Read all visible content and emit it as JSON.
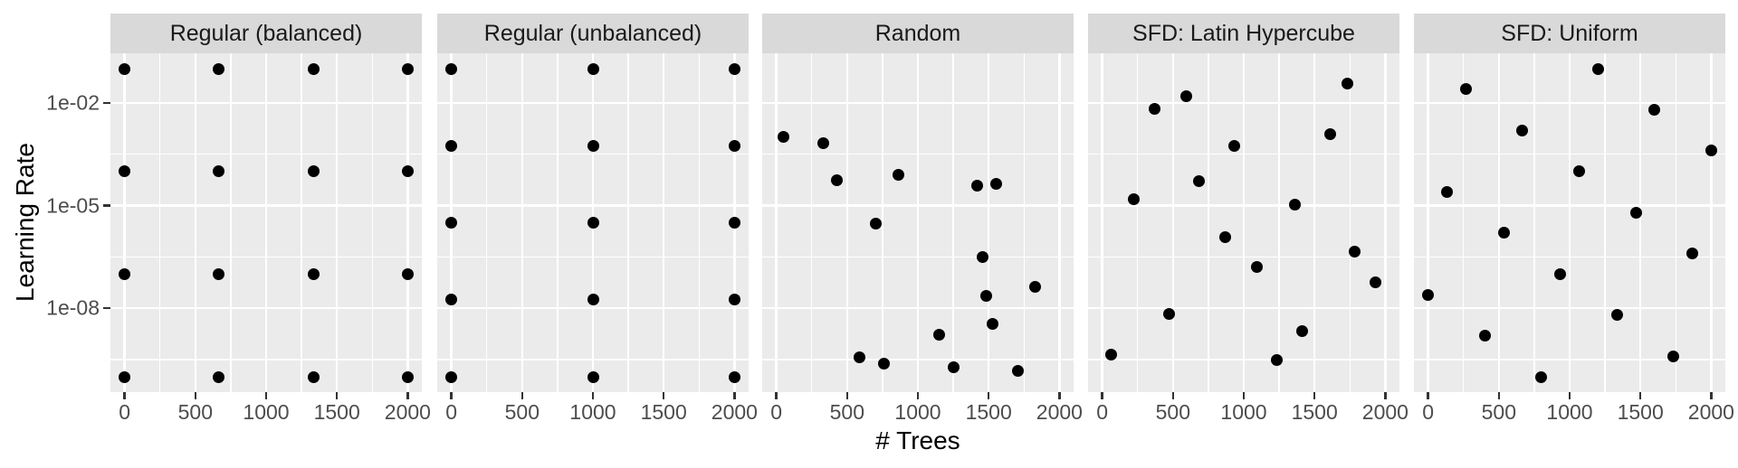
{
  "figure": {
    "xlabel": "# Trees",
    "ylabel": "Learning Rate"
  },
  "axes": {
    "x_tick_labels": [
      "0",
      "500",
      "1000",
      "1500",
      "2000"
    ],
    "x_tick_values": [
      0,
      500,
      1000,
      1500,
      2000
    ],
    "x_minor_values": [
      250,
      750,
      1250,
      1750
    ],
    "y_tick_labels": [
      "1e-02",
      "1e-05",
      "1e-08"
    ],
    "y_tick_exponents": [
      -2,
      -5,
      -8
    ],
    "y_minor_exponents": [
      -3.5,
      -6.5,
      -9.5
    ],
    "x_domain": [
      -100,
      2100
    ],
    "y_exp_domain": [
      -0.55,
      -10.45
    ]
  },
  "colors": {
    "panel_bg": "#EBEBEB",
    "strip_bg": "#D9D9D9",
    "grid": "#FFFFFF",
    "point": "#000000",
    "axis_text": "#4D4D4D",
    "tick_mark": "#333333",
    "title_text": "#000000",
    "strip_text": "#1A1A1A"
  },
  "chart_data": {
    "type": "scatter",
    "title": "",
    "xlabel": "# Trees",
    "ylabel": "Learning Rate",
    "x_range": [
      0,
      2000
    ],
    "y_range": [
      1e-10,
      0.1
    ],
    "y_scale": "log10",
    "grid": true,
    "legend_position": "none",
    "facets": [
      {
        "label": "Regular (balanced)",
        "points": [
          [
            0,
            0.1
          ],
          [
            667,
            0.1
          ],
          [
            1333,
            0.1
          ],
          [
            2000,
            0.1
          ],
          [
            0,
            0.0001
          ],
          [
            667,
            0.0001
          ],
          [
            1333,
            0.0001
          ],
          [
            2000,
            0.0001
          ],
          [
            0,
            1e-07
          ],
          [
            667,
            1e-07
          ],
          [
            1333,
            1e-07
          ],
          [
            2000,
            1e-07
          ],
          [
            0,
            1e-10
          ],
          [
            667,
            1e-10
          ],
          [
            1333,
            1e-10
          ],
          [
            2000,
            1e-10
          ]
        ]
      },
      {
        "label": "Regular (unbalanced)",
        "points": [
          [
            0,
            0.1
          ],
          [
            1000,
            0.1
          ],
          [
            2000,
            0.1
          ],
          [
            0,
            0.00056
          ],
          [
            1000,
            0.00056
          ],
          [
            2000,
            0.00056
          ],
          [
            0,
            3.2e-06
          ],
          [
            1000,
            3.2e-06
          ],
          [
            2000,
            3.2e-06
          ],
          [
            0,
            1.8e-08
          ],
          [
            1000,
            1.8e-08
          ],
          [
            2000,
            1.8e-08
          ],
          [
            0,
            1e-10
          ],
          [
            1000,
            1e-10
          ],
          [
            2000,
            1e-10
          ]
        ]
      },
      {
        "label": "Random",
        "points": [
          [
            50,
            0.001
          ],
          [
            330,
            0.00065
          ],
          [
            425,
            5.6e-05
          ],
          [
            865,
            8.1e-05
          ],
          [
            1420,
            3.8e-05
          ],
          [
            1550,
            4.3e-05
          ],
          [
            700,
            3e-06
          ],
          [
            1460,
            3.2e-07
          ],
          [
            1825,
            4.3e-08
          ],
          [
            1485,
            2.3e-08
          ],
          [
            1525,
            3.6e-09
          ],
          [
            1150,
            1.7e-09
          ],
          [
            585,
            3.6e-10
          ],
          [
            760,
            2.4e-10
          ],
          [
            1250,
            1.9e-10
          ],
          [
            1705,
            1.5e-10
          ]
        ]
      },
      {
        "label": "SFD: Latin Hypercube",
        "points": [
          [
            1730,
            0.036
          ],
          [
            595,
            0.016
          ],
          [
            370,
            0.0069
          ],
          [
            1610,
            0.00126
          ],
          [
            935,
            0.00054
          ],
          [
            680,
            5.2e-05
          ],
          [
            225,
            1.55e-05
          ],
          [
            1360,
            1.07e-05
          ],
          [
            870,
            1.17e-06
          ],
          [
            1780,
            4.5e-07
          ],
          [
            1090,
            1.6e-07
          ],
          [
            1930,
            5.9e-08
          ],
          [
            470,
            6.9e-09
          ],
          [
            1410,
            2.2e-09
          ],
          [
            60,
            4.5e-10
          ],
          [
            1230,
            3.1e-10
          ]
        ]
      },
      {
        "label": "SFD: Uniform",
        "points": [
          [
            1200,
            0.1
          ],
          [
            267,
            0.025
          ],
          [
            1600,
            0.0063
          ],
          [
            667,
            0.0016
          ],
          [
            2000,
            0.0004
          ],
          [
            1067,
            0.0001
          ],
          [
            133,
            2.5e-05
          ],
          [
            1467,
            6.3e-06
          ],
          [
            533,
            1.6e-06
          ],
          [
            1867,
            4e-07
          ],
          [
            933,
            1e-07
          ],
          [
            0,
            2.5e-08
          ],
          [
            1333,
            6.3e-09
          ],
          [
            400,
            1.6e-09
          ],
          [
            1733,
            4e-10
          ],
          [
            800,
            1e-10
          ]
        ]
      }
    ]
  }
}
